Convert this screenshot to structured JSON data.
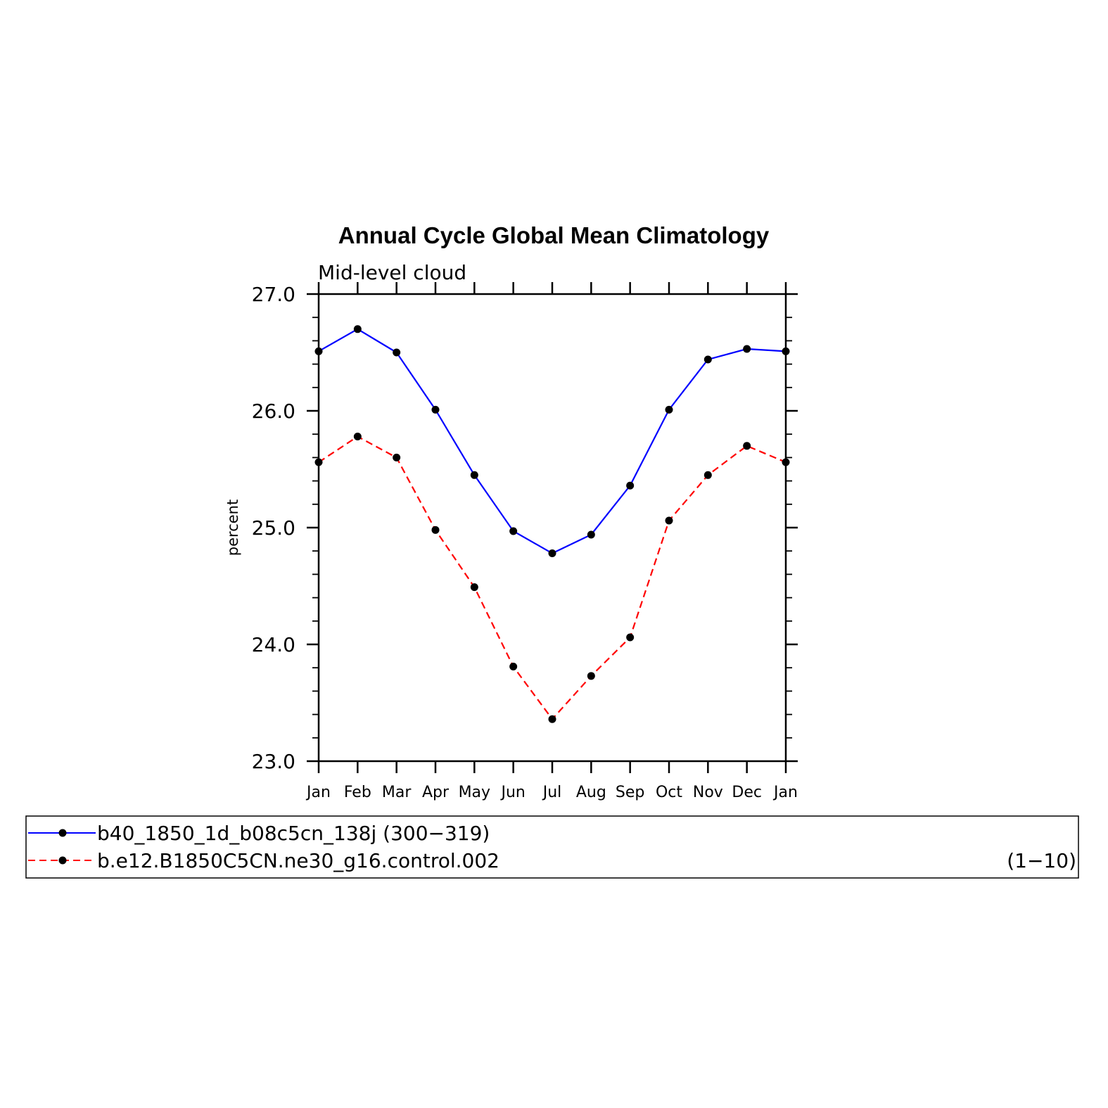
{
  "chart_data": {
    "type": "line",
    "title": "Annual Cycle Global Mean Climatology",
    "subtitle": "Mid-level cloud",
    "xlabel": "",
    "ylabel": "percent",
    "ylim": [
      23.0,
      27.0
    ],
    "yticks": [
      "23.0",
      "24.0",
      "25.0",
      "26.0",
      "27.0"
    ],
    "categories": [
      "Jan",
      "Feb",
      "Mar",
      "Apr",
      "May",
      "Jun",
      "Jul",
      "Aug",
      "Sep",
      "Oct",
      "Nov",
      "Dec",
      "Jan"
    ],
    "series": [
      {
        "name": "b40_1850_1d_b08c5cn_138j (300-319)",
        "label": "b40_1850_1d_b08c5cn_138j",
        "years": "(300−319)",
        "color": "#0000ff",
        "dash": "solid",
        "values": [
          26.51,
          26.7,
          26.5,
          26.01,
          25.45,
          24.97,
          24.78,
          24.94,
          25.36,
          26.01,
          26.44,
          26.53,
          26.51
        ]
      },
      {
        "name": "b.e12.B1850C5CN.ne30_g16.control.002 (1-10)",
        "label": "b.e12.B1850C5CN.ne30_g16.control.002",
        "years": "(1−10)",
        "color": "#ff0000",
        "dash": "dashed",
        "values": [
          25.56,
          25.78,
          25.6,
          24.98,
          24.49,
          23.81,
          23.36,
          23.73,
          24.06,
          25.06,
          25.45,
          25.7,
          25.56
        ]
      }
    ],
    "legend": "bottom"
  }
}
